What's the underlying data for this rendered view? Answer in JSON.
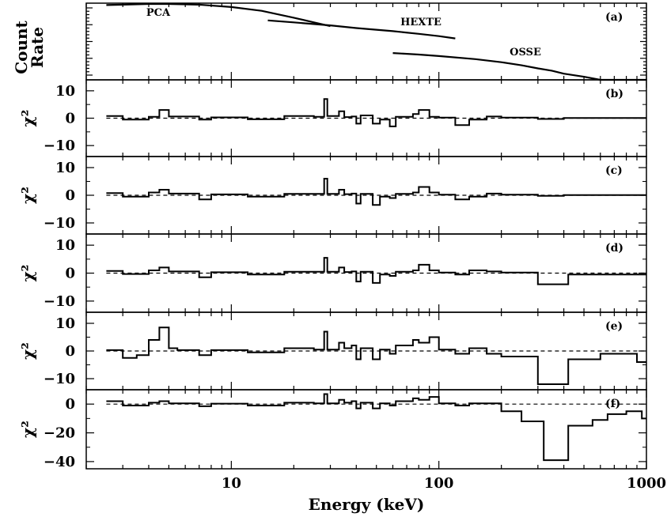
{
  "chart_data": {
    "type": "line",
    "x_scale": "log",
    "xlim": [
      2,
      1000
    ],
    "xlabel": "Energy (keV)",
    "xticks": [
      10,
      100,
      1000
    ],
    "xtick_labels": [
      "10",
      "100",
      "1000"
    ],
    "panels": [
      {
        "id": "a",
        "label": "(a)",
        "ylabel_lines": [
          "Count",
          "Rate"
        ],
        "y_scale": "log",
        "ylim": [
          -1.0,
          1.0
        ],
        "series": [
          {
            "name": "PCA",
            "x": [
              2.5,
              3,
              4,
              5,
              7,
              10,
              14,
              20,
              25,
              30
            ],
            "y": [
              0.95,
              0.96,
              0.98,
              0.98,
              0.96,
              0.9,
              0.8,
              0.62,
              0.5,
              0.4
            ]
          },
          {
            "name": "HEXTE",
            "x": [
              15,
              20,
              30,
              40,
              60,
              80,
              100,
              120
            ],
            "y": [
              0.55,
              0.5,
              0.42,
              0.35,
              0.27,
              0.2,
              0.14,
              0.08
            ]
          },
          {
            "name": "OSSE",
            "x": [
              60,
              80,
              100,
              150,
              200,
              250,
              300,
              350,
              400,
              500,
              600,
              1000
            ],
            "y": [
              -0.3,
              -0.34,
              -0.38,
              -0.46,
              -0.54,
              -0.62,
              -0.7,
              -0.76,
              -0.84,
              -0.92,
              -1.0,
              -1.0
            ]
          }
        ]
      },
      {
        "id": "b",
        "label": "(b)",
        "ylabel": "χ²",
        "ylim": [
          -14,
          14
        ],
        "yticks": [
          10,
          0,
          -10
        ],
        "ytick_labels": [
          "10",
          "0",
          "−10"
        ],
        "steps": [
          [
            2.5,
            3,
            0.8
          ],
          [
            3,
            4,
            -0.5
          ],
          [
            4,
            4.5,
            0.5
          ],
          [
            4.5,
            5,
            3
          ],
          [
            5,
            7,
            0.6
          ],
          [
            7,
            8,
            -0.5
          ],
          [
            8,
            12,
            0.3
          ],
          [
            12,
            18,
            -0.4
          ],
          [
            18,
            25,
            0.8
          ],
          [
            25,
            28,
            0.5
          ],
          [
            28,
            29,
            7
          ],
          [
            29,
            33,
            0.8
          ],
          [
            33,
            35,
            2.5
          ],
          [
            35,
            38,
            0.4
          ],
          [
            38,
            40,
            0.6
          ],
          [
            40,
            42,
            -2
          ],
          [
            42,
            48,
            1
          ],
          [
            48,
            52,
            -2
          ],
          [
            52,
            58,
            -0.5
          ],
          [
            58,
            62,
            -3
          ],
          [
            62,
            75,
            0.5
          ],
          [
            75,
            80,
            1.5
          ],
          [
            80,
            90,
            3
          ],
          [
            90,
            100,
            0.5
          ],
          [
            100,
            120,
            0.2
          ],
          [
            120,
            140,
            -2.5
          ],
          [
            140,
            170,
            -0.5
          ],
          [
            170,
            200,
            0.6
          ],
          [
            200,
            300,
            0.2
          ],
          [
            300,
            400,
            -0.3
          ],
          [
            400,
            1000,
            0.1
          ]
        ]
      },
      {
        "id": "c",
        "label": "(c)",
        "ylabel": "χ²",
        "ylim": [
          -14,
          14
        ],
        "yticks": [
          10,
          0,
          -10
        ],
        "ytick_labels": [
          "10",
          "0",
          "−10"
        ],
        "steps": [
          [
            2.5,
            3,
            0.8
          ],
          [
            3,
            4,
            -0.5
          ],
          [
            4,
            4.5,
            1
          ],
          [
            4.5,
            5,
            2
          ],
          [
            5,
            7,
            0.6
          ],
          [
            7,
            8,
            -1.5
          ],
          [
            8,
            12,
            0.3
          ],
          [
            12,
            18,
            -0.5
          ],
          [
            18,
            25,
            0.5
          ],
          [
            25,
            28,
            0.5
          ],
          [
            28,
            29,
            6
          ],
          [
            29,
            33,
            0.5
          ],
          [
            33,
            35,
            2
          ],
          [
            35,
            38,
            0.4
          ],
          [
            38,
            40,
            0.6
          ],
          [
            40,
            42,
            -3
          ],
          [
            42,
            48,
            0.5
          ],
          [
            48,
            52,
            -3.5
          ],
          [
            52,
            58,
            -0.5
          ],
          [
            58,
            62,
            -1
          ],
          [
            62,
            75,
            0.5
          ],
          [
            75,
            80,
            1
          ],
          [
            80,
            90,
            3
          ],
          [
            90,
            100,
            1
          ],
          [
            100,
            120,
            0.2
          ],
          [
            120,
            140,
            -1.5
          ],
          [
            140,
            170,
            -0.5
          ],
          [
            170,
            200,
            0.6
          ],
          [
            200,
            300,
            0.2
          ],
          [
            300,
            400,
            -0.2
          ],
          [
            400,
            1000,
            0.1
          ]
        ]
      },
      {
        "id": "d",
        "label": "(d)",
        "ylabel": "χ²",
        "ylim": [
          -14,
          14
        ],
        "yticks": [
          10,
          0,
          -10
        ],
        "ytick_labels": [
          "10",
          "0",
          "−10"
        ],
        "steps": [
          [
            2.5,
            3,
            0.8
          ],
          [
            3,
            4,
            -0.3
          ],
          [
            4,
            4.5,
            1
          ],
          [
            4.5,
            5,
            2
          ],
          [
            5,
            7,
            0.6
          ],
          [
            7,
            8,
            -1.5
          ],
          [
            8,
            12,
            0.3
          ],
          [
            12,
            18,
            -0.5
          ],
          [
            18,
            25,
            0.5
          ],
          [
            25,
            28,
            0.5
          ],
          [
            28,
            29,
            5.5
          ],
          [
            29,
            33,
            0.5
          ],
          [
            33,
            35,
            2
          ],
          [
            35,
            38,
            0.4
          ],
          [
            38,
            40,
            0.6
          ],
          [
            40,
            42,
            -3
          ],
          [
            42,
            48,
            0.5
          ],
          [
            48,
            52,
            -3.5
          ],
          [
            52,
            58,
            -0.5
          ],
          [
            58,
            62,
            -1
          ],
          [
            62,
            75,
            0.5
          ],
          [
            75,
            80,
            1
          ],
          [
            80,
            90,
            3
          ],
          [
            90,
            100,
            1
          ],
          [
            100,
            120,
            0.2
          ],
          [
            120,
            140,
            -0.5
          ],
          [
            140,
            170,
            1
          ],
          [
            170,
            200,
            0.6
          ],
          [
            200,
            300,
            0.2
          ],
          [
            300,
            420,
            -4
          ],
          [
            420,
            1000,
            -0.5
          ]
        ]
      },
      {
        "id": "e",
        "label": "(e)",
        "ylabel": "χ²",
        "ylim": [
          -14,
          14
        ],
        "yticks": [
          10,
          0,
          -10
        ],
        "ytick_labels": [
          "10",
          "0",
          "−10"
        ],
        "steps": [
          [
            2.5,
            3,
            0.3
          ],
          [
            3,
            3.5,
            -2.5
          ],
          [
            3.5,
            4,
            -1.5
          ],
          [
            4,
            4.5,
            4
          ],
          [
            4.5,
            5,
            8.5
          ],
          [
            5,
            5.5,
            1
          ],
          [
            5.5,
            7,
            0.3
          ],
          [
            7,
            8,
            -1.5
          ],
          [
            8,
            12,
            0.3
          ],
          [
            12,
            18,
            -0.5
          ],
          [
            18,
            25,
            1
          ],
          [
            25,
            28,
            0.5
          ],
          [
            28,
            29,
            7
          ],
          [
            29,
            33,
            0.5
          ],
          [
            33,
            35,
            3
          ],
          [
            35,
            38,
            1
          ],
          [
            38,
            40,
            2
          ],
          [
            40,
            42,
            -3
          ],
          [
            42,
            48,
            1
          ],
          [
            48,
            52,
            -3
          ],
          [
            52,
            58,
            0.5
          ],
          [
            58,
            62,
            -1
          ],
          [
            62,
            75,
            2
          ],
          [
            75,
            80,
            4
          ],
          [
            80,
            90,
            3
          ],
          [
            90,
            100,
            5
          ],
          [
            100,
            120,
            0.5
          ],
          [
            120,
            140,
            -1
          ],
          [
            140,
            170,
            1
          ],
          [
            170,
            200,
            -1
          ],
          [
            200,
            300,
            -2
          ],
          [
            300,
            420,
            -12
          ],
          [
            420,
            600,
            -3
          ],
          [
            600,
            900,
            -1
          ],
          [
            900,
            1000,
            -4
          ]
        ]
      },
      {
        "id": "f",
        "label": "(f)",
        "ylabel": "χ²",
        "ylim": [
          -45,
          10
        ],
        "yticks": [
          0,
          -20,
          -40
        ],
        "ytick_labels": [
          "0",
          "−20",
          "−40"
        ],
        "steps": [
          [
            2.5,
            3,
            2
          ],
          [
            3,
            4,
            -1
          ],
          [
            4,
            4.5,
            1
          ],
          [
            4.5,
            5,
            2
          ],
          [
            5,
            7,
            0.5
          ],
          [
            7,
            8,
            -1.5
          ],
          [
            8,
            12,
            0.3
          ],
          [
            12,
            18,
            -1
          ],
          [
            18,
            25,
            1
          ],
          [
            25,
            28,
            0.5
          ],
          [
            28,
            29,
            7
          ],
          [
            29,
            33,
            0.5
          ],
          [
            33,
            35,
            3
          ],
          [
            35,
            38,
            1
          ],
          [
            38,
            40,
            2
          ],
          [
            40,
            42,
            -3
          ],
          [
            42,
            48,
            1
          ],
          [
            48,
            52,
            -3
          ],
          [
            52,
            58,
            0.5
          ],
          [
            58,
            62,
            -1
          ],
          [
            62,
            75,
            2
          ],
          [
            75,
            80,
            4
          ],
          [
            80,
            90,
            3
          ],
          [
            90,
            100,
            5
          ],
          [
            100,
            120,
            0.5
          ],
          [
            120,
            140,
            -1
          ],
          [
            140,
            200,
            0.5
          ],
          [
            200,
            250,
            -5
          ],
          [
            250,
            320,
            -12
          ],
          [
            320,
            420,
            -39
          ],
          [
            420,
            550,
            -15
          ],
          [
            550,
            650,
            -11
          ],
          [
            650,
            800,
            -7
          ],
          [
            800,
            950,
            -5
          ],
          [
            950,
            1000,
            -10
          ]
        ]
      }
    ]
  }
}
